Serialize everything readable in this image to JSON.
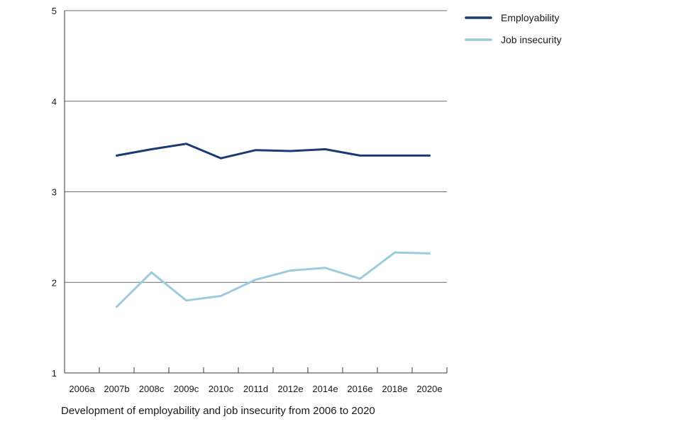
{
  "chart_data": {
    "type": "line",
    "title": "",
    "xlabel": "",
    "ylabel": "",
    "categories": [
      "2006a",
      "2007b",
      "2008c",
      "2009c",
      "2010c",
      "2011d",
      "2012e",
      "2014e",
      "2016e",
      "2018e",
      "2020e"
    ],
    "ylim": [
      1,
      5
    ],
    "yticks": [
      "1",
      "2",
      "3",
      "4",
      "5"
    ],
    "grid": "horizontal",
    "legend_position": "top-right",
    "series": [
      {
        "name": "Employability",
        "color": "#1b3a73",
        "values": [
          null,
          3.4,
          3.47,
          3.53,
          3.37,
          3.46,
          3.45,
          3.47,
          3.4,
          3.4,
          3.4
        ]
      },
      {
        "name": "Job insecurity",
        "color": "#9ccbe0",
        "values": [
          null,
          1.73,
          2.11,
          1.8,
          1.85,
          2.03,
          2.13,
          2.16,
          2.04,
          2.33,
          2.32
        ]
      }
    ]
  },
  "caption": "Development of employability and job insecurity from 2006 to 2020"
}
